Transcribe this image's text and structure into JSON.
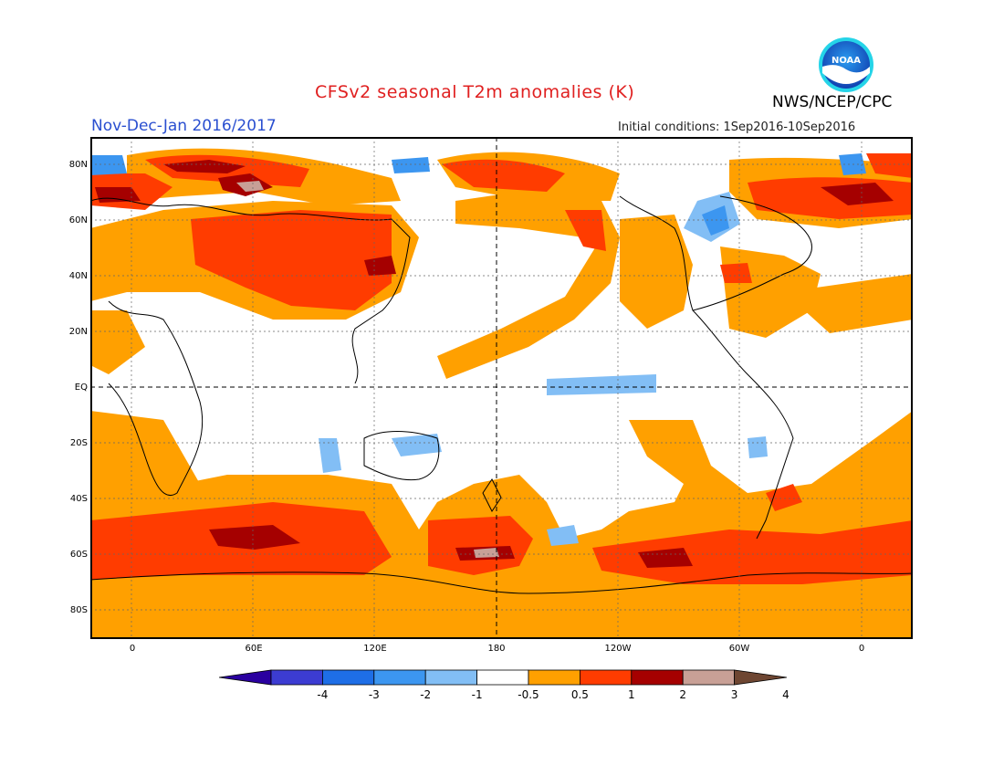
{
  "header": {
    "title": "CFSv2 seasonal T2m anomalies (K)",
    "organization": "NWS/NCEP/CPC",
    "period": "Nov-Dec-Jan 2016/2017",
    "initial_conditions": "Initial conditions: 1Sep2016-10Sep2016",
    "logo_text": "NOAA"
  },
  "map": {
    "latitude_labels": [
      "80N",
      "60N",
      "40N",
      "20N",
      "EQ",
      "20S",
      "40S",
      "60S",
      "80S"
    ],
    "longitude_labels": [
      "0",
      "60E",
      "120E",
      "180",
      "120W",
      "60W",
      "0"
    ]
  },
  "legend": {
    "labels": [
      "-4",
      "-3",
      "-2",
      "-1",
      "-0.5",
      "0.5",
      "1",
      "2",
      "3",
      "4"
    ],
    "colors": [
      "#2a00a0",
      "#3c3cd2",
      "#1e6ee6",
      "#3c96f0",
      "#82bef5",
      "#ffffff",
      "#ffa000",
      "#ff3c00",
      "#a50000",
      "#c8a096",
      "#6e4632"
    ]
  },
  "colors": {
    "anomaly_0_5_to_1": "#ffa000",
    "anomaly_1_to_2": "#ff3c00",
    "anomaly_2_to_3": "#a50000",
    "anomaly_3_to_4": "#c8a096",
    "anomaly_neg_0_5_to_neg_1": "#82bef5",
    "anomaly_neg_1_to_neg_2": "#3c96f0",
    "anomaly_neg_2_to_neg_3": "#1e6ee6",
    "title": "#e02020",
    "period": "#2a4fd0"
  }
}
